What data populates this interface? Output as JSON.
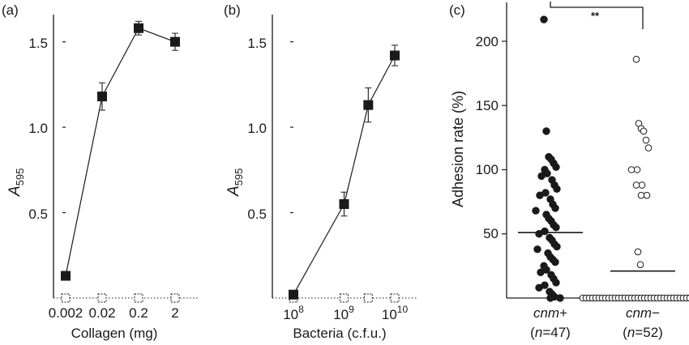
{
  "chart_data": [
    {
      "panel_label": "(a)",
      "type": "line",
      "xscale": "log",
      "x": [
        0.002,
        0.02,
        0.2,
        2
      ],
      "xticks": [
        "0.002",
        "0.02",
        "0.2",
        "2"
      ],
      "xlabel": "Collagen (mg)",
      "ylabel_main": "A",
      "ylabel_sub": "595",
      "ylim": [
        0,
        1.65
      ],
      "yticks": [
        "0.5",
        "1.0",
        "1.5"
      ],
      "yticks_values": [
        0.5,
        1.0,
        1.5
      ],
      "series": [
        {
          "marker": "filled-square",
          "values": [
            0.13,
            1.18,
            1.58,
            1.5
          ],
          "errors": [
            0.02,
            0.08,
            0.04,
            0.05
          ]
        },
        {
          "marker": "open-square",
          "values": [
            0.0,
            0.0,
            0.0,
            0.0
          ]
        }
      ]
    },
    {
      "panel_label": "(b)",
      "type": "line",
      "xscale": "log",
      "x": [
        100000000.0,
        1000000000.0,
        3000000000.0,
        10000000000.0
      ],
      "xticks_base": "10",
      "xticks_exp": [
        "8",
        "9",
        "10"
      ],
      "xticks_values": [
        100000000.0,
        1000000000.0,
        10000000000.0
      ],
      "xlabel": "Bacteria (c.f.u.)",
      "ylabel_main": "A",
      "ylabel_sub": "595",
      "ylim": [
        0,
        1.65
      ],
      "yticks": [
        "0.5",
        "1.0",
        "1.5"
      ],
      "yticks_values": [
        0.5,
        1.0,
        1.5
      ],
      "series": [
        {
          "marker": "filled-square",
          "values": [
            0.02,
            0.55,
            1.13,
            1.42
          ],
          "errors": [
            0.01,
            0.07,
            0.1,
            0.06
          ]
        },
        {
          "marker": "open-square",
          "values": [
            0.0,
            0.0,
            0.0,
            0.0
          ]
        }
      ]
    },
    {
      "panel_label": "(c)",
      "type": "scatter",
      "categories": [
        "cnm+",
        "cnm−"
      ],
      "category_main": [
        "cnm",
        "cnm"
      ],
      "category_sign": [
        "+",
        "−"
      ],
      "category_n": [
        "(n=47)",
        "(n=52)"
      ],
      "n_prefix": "(",
      "n_letter": "n",
      "n_values": [
        "=47)",
        "=52)"
      ],
      "ylabel": "Adhesion rate (%)",
      "ylim": [
        0,
        220
      ],
      "yticks": [
        "50",
        "100",
        "150",
        "200"
      ],
      "yticks_values": [
        50,
        100,
        150,
        200
      ],
      "means": [
        51,
        21
      ],
      "significance": "**",
      "series": [
        {
          "name": "cnm+",
          "marker": "filled-circle",
          "values": [
            217,
            130,
            110,
            108,
            105,
            102,
            100,
            97,
            95,
            92,
            88,
            85,
            82,
            80,
            77,
            73,
            70,
            68,
            65,
            62,
            60,
            57,
            55,
            52,
            50,
            47,
            45,
            42,
            40,
            38,
            35,
            32,
            30,
            28,
            25,
            22,
            20,
            18,
            15,
            12,
            10,
            8,
            5,
            3,
            1,
            0,
            0
          ]
        },
        {
          "name": "cnm−",
          "marker": "open-circle",
          "values": [
            186,
            136,
            132,
            130,
            123,
            117,
            100,
            100,
            88,
            88,
            80,
            80,
            36,
            26,
            0,
            0,
            0,
            0,
            0,
            0,
            0,
            0,
            0,
            0,
            0,
            0,
            0,
            0,
            0,
            0,
            0,
            0,
            0,
            0,
            0,
            0,
            0,
            0,
            0,
            0,
            0,
            0,
            0,
            0,
            0,
            0,
            0,
            0,
            0,
            0,
            0,
            0
          ]
        }
      ]
    }
  ]
}
